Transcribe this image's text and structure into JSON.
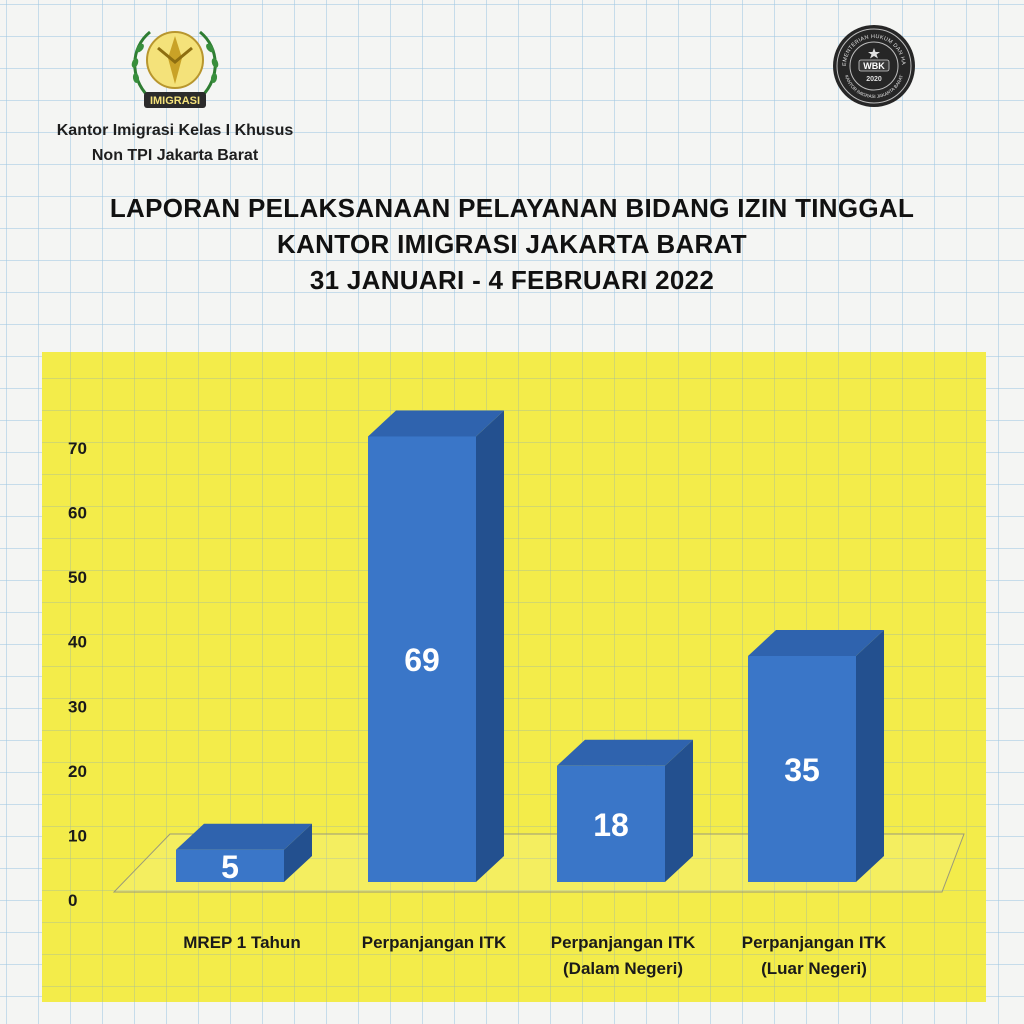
{
  "header": {
    "org_line1": "Kantor Imigrasi Kelas I Khusus",
    "org_line2": "Non TPI Jakarta Barat",
    "logo_left_text": "IMIGRASI",
    "logo_right_text": "WBK",
    "logo_right_year": "2020",
    "logo_right_ring_text": "KEMENTERIAN HUKUM DAN HAM",
    "logo_right_ring_bottom": "KANTOR IMIGRASI JAKARTA BARAT"
  },
  "title": {
    "line1": "LAPORAN PELAKSANAAN PELAYANAN BIDANG IZIN TINGGAL",
    "line2": "KANTOR IMIGRASI JAKARTA BARAT",
    "line3": "31 JANUARI - 4 FEBRUARI 2022"
  },
  "colors": {
    "bar_front": "#3a76c8",
    "bar_top": "#2f63ae",
    "bar_side": "#23508f",
    "panel": "#f3ec4a",
    "axis_text": "#1a1a1a",
    "label_text": "#ffffff"
  },
  "chart_data": {
    "type": "bar",
    "style": "3d",
    "categories": [
      [
        "MREP 1 Tahun"
      ],
      [
        "Perpanjangan ITK"
      ],
      [
        "Perpanjangan ITK",
        "(Dalam Negeri)"
      ],
      [
        "Perpanjangan ITK",
        "(Luar Negeri)"
      ]
    ],
    "values": [
      5,
      69,
      18,
      35
    ],
    "data_labels": [
      "5",
      "69",
      "18",
      "35"
    ],
    "yticks": [
      0,
      10,
      20,
      30,
      40,
      50,
      60,
      70
    ],
    "ylim": [
      0,
      70
    ],
    "grid": false,
    "legend": "none"
  }
}
